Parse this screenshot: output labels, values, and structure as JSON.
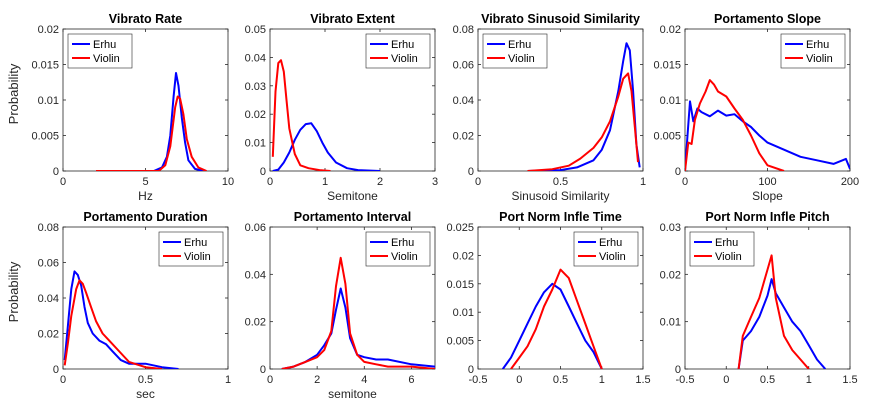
{
  "figure": {
    "y_label": "Probability"
  },
  "chart_data": [
    {
      "type": "line",
      "title": "Vibrato Rate",
      "xlabel": "Hz",
      "ylabel": "Probability",
      "xlim": [
        0,
        10
      ],
      "ylim": [
        0,
        0.02
      ],
      "xticks": [
        0,
        5,
        10
      ],
      "yticks": [
        0,
        0.005,
        0.01,
        0.015,
        0.02
      ],
      "xtick_labels": [
        "0",
        "5",
        "10"
      ],
      "ytick_labels": [
        "0",
        "0.005",
        "0.01",
        "0.015",
        "0.02"
      ],
      "legend": "top-left",
      "series": [
        {
          "name": "Erhu",
          "color": "#0000ff",
          "x": [
            2,
            5.5,
            6.0,
            6.3,
            6.5,
            6.7,
            6.85,
            7.0,
            7.2,
            7.4,
            7.6,
            8.0,
            8.5
          ],
          "y": [
            0,
            0,
            0.0005,
            0.002,
            0.005,
            0.0105,
            0.0138,
            0.012,
            0.0075,
            0.004,
            0.0015,
            0.0003,
            0
          ]
        },
        {
          "name": "Violin",
          "color": "#ff0000",
          "x": [
            2,
            5.8,
            6.2,
            6.5,
            6.8,
            6.95,
            7.1,
            7.3,
            7.5,
            7.8,
            8.2,
            8.7
          ],
          "y": [
            0,
            0,
            0.0008,
            0.0035,
            0.009,
            0.0105,
            0.0102,
            0.008,
            0.0045,
            0.002,
            0.0005,
            0
          ]
        }
      ]
    },
    {
      "type": "line",
      "title": "Vibrato Extent",
      "xlabel": "Semitone",
      "ylabel": "",
      "xlim": [
        0,
        3
      ],
      "ylim": [
        0,
        0.05
      ],
      "xticks": [
        0,
        1,
        2,
        3
      ],
      "yticks": [
        0,
        0.01,
        0.02,
        0.03,
        0.04,
        0.05
      ],
      "xtick_labels": [
        "0",
        "1",
        "2",
        "3"
      ],
      "ytick_labels": [
        "0",
        "0.01",
        "0.02",
        "0.03",
        "0.04",
        "0.05"
      ],
      "legend": "top-right",
      "series": [
        {
          "name": "Erhu",
          "color": "#0000ff",
          "x": [
            0.05,
            0.15,
            0.25,
            0.35,
            0.45,
            0.55,
            0.65,
            0.75,
            0.85,
            0.95,
            1.05,
            1.2,
            1.4,
            1.6,
            2.0
          ],
          "y": [
            0,
            0.0005,
            0.003,
            0.0065,
            0.011,
            0.0145,
            0.0165,
            0.0168,
            0.014,
            0.01,
            0.0065,
            0.003,
            0.001,
            0.0003,
            0
          ]
        },
        {
          "name": "Violin",
          "color": "#ff0000",
          "x": [
            0.05,
            0.1,
            0.15,
            0.2,
            0.25,
            0.3,
            0.35,
            0.45,
            0.55,
            0.7,
            0.9,
            1.1
          ],
          "y": [
            0.005,
            0.028,
            0.038,
            0.039,
            0.035,
            0.025,
            0.015,
            0.006,
            0.002,
            0.001,
            0.0003,
            0
          ]
        }
      ]
    },
    {
      "type": "line",
      "title": "Vibrato Sinusoid Similarity",
      "xlabel": "Sinusoid Similarity",
      "ylabel": "",
      "xlim": [
        0,
        1
      ],
      "ylim": [
        0,
        0.08
      ],
      "xticks": [
        0,
        0.5,
        1
      ],
      "yticks": [
        0,
        0.02,
        0.04,
        0.06,
        0.08
      ],
      "xtick_labels": [
        "0",
        "0.5",
        "1"
      ],
      "ytick_labels": [
        "0",
        "0.02",
        "0.04",
        "0.06",
        "0.08"
      ],
      "legend": "top-left",
      "series": [
        {
          "name": "Erhu",
          "color": "#0000ff",
          "x": [
            0.3,
            0.5,
            0.6,
            0.7,
            0.75,
            0.8,
            0.85,
            0.88,
            0.9,
            0.92,
            0.94,
            0.96,
            0.98
          ],
          "y": [
            0,
            0.0005,
            0.002,
            0.006,
            0.012,
            0.023,
            0.045,
            0.062,
            0.072,
            0.068,
            0.045,
            0.015,
            0.002
          ]
        },
        {
          "name": "Violin",
          "color": "#ff0000",
          "x": [
            0.3,
            0.45,
            0.55,
            0.62,
            0.7,
            0.75,
            0.8,
            0.85,
            0.88,
            0.91,
            0.93,
            0.95,
            0.97
          ],
          "y": [
            0,
            0.001,
            0.003,
            0.007,
            0.013,
            0.019,
            0.028,
            0.042,
            0.052,
            0.055,
            0.045,
            0.025,
            0.005
          ]
        }
      ]
    },
    {
      "type": "line",
      "title": "Portamento Slope",
      "xlabel": "Slope",
      "ylabel": "",
      "xlim": [
        0,
        200
      ],
      "ylim": [
        0,
        0.02
      ],
      "xticks": [
        0,
        100,
        200
      ],
      "yticks": [
        0,
        0.005,
        0.01,
        0.015,
        0.02
      ],
      "xtick_labels": [
        "0",
        "100",
        "200"
      ],
      "ytick_labels": [
        "0",
        "0.005",
        "0.01",
        "0.015",
        "0.02"
      ],
      "legend": "top-right",
      "series": [
        {
          "name": "Erhu",
          "color": "#0000ff",
          "x": [
            0,
            3,
            6,
            10,
            15,
            20,
            30,
            40,
            50,
            60,
            70,
            80,
            90,
            100,
            120,
            140,
            160,
            180,
            195,
            200
          ],
          "y": [
            0,
            0.005,
            0.0098,
            0.007,
            0.0088,
            0.0083,
            0.0077,
            0.0085,
            0.0078,
            0.008,
            0.007,
            0.0062,
            0.005,
            0.004,
            0.003,
            0.002,
            0.0015,
            0.001,
            0.0017,
            0.0003
          ]
        },
        {
          "name": "Violin",
          "color": "#ff0000",
          "x": [
            0,
            4,
            8,
            12,
            18,
            25,
            30,
            35,
            40,
            50,
            60,
            70,
            80,
            90,
            100,
            120
          ],
          "y": [
            0,
            0.004,
            0.0038,
            0.0072,
            0.0095,
            0.0112,
            0.0128,
            0.0122,
            0.0112,
            0.0105,
            0.0088,
            0.0072,
            0.005,
            0.0025,
            0.0008,
            0
          ]
        }
      ]
    },
    {
      "type": "line",
      "title": "Portamento Duration",
      "xlabel": "sec",
      "ylabel": "Probability",
      "xlim": [
        0,
        1
      ],
      "ylim": [
        0,
        0.08
      ],
      "xticks": [
        0,
        0.5,
        1
      ],
      "yticks": [
        0,
        0.02,
        0.04,
        0.06,
        0.08
      ],
      "xtick_labels": [
        "0",
        "0.5",
        "1"
      ],
      "ytick_labels": [
        "0",
        "0.02",
        "0.04",
        "0.06",
        "0.08"
      ],
      "legend": "top-right",
      "series": [
        {
          "name": "Erhu",
          "color": "#0000ff",
          "x": [
            0.01,
            0.03,
            0.05,
            0.07,
            0.09,
            0.11,
            0.13,
            0.15,
            0.18,
            0.22,
            0.26,
            0.3,
            0.35,
            0.4,
            0.5,
            0.6,
            0.7
          ],
          "y": [
            0.005,
            0.025,
            0.045,
            0.055,
            0.053,
            0.047,
            0.035,
            0.026,
            0.02,
            0.016,
            0.014,
            0.01,
            0.005,
            0.003,
            0.003,
            0.001,
            0
          ]
        },
        {
          "name": "Violin",
          "color": "#ff0000",
          "x": [
            0.01,
            0.03,
            0.05,
            0.08,
            0.1,
            0.12,
            0.14,
            0.17,
            0.2,
            0.24,
            0.28,
            0.33,
            0.4,
            0.5,
            0.6
          ],
          "y": [
            0.002,
            0.015,
            0.03,
            0.045,
            0.05,
            0.048,
            0.043,
            0.035,
            0.027,
            0.02,
            0.016,
            0.011,
            0.004,
            0.001,
            0
          ]
        }
      ]
    },
    {
      "type": "line",
      "title": "Portamento Interval",
      "xlabel": "semitone",
      "ylabel": "",
      "xlim": [
        0,
        7
      ],
      "ylim": [
        0,
        0.06
      ],
      "xticks": [
        0,
        2,
        4,
        6
      ],
      "yticks": [
        0,
        0.02,
        0.04,
        0.06
      ],
      "xtick_labels": [
        "0",
        "2",
        "4",
        "6"
      ],
      "ytick_labels": [
        "0",
        "0.02",
        "0.04",
        "0.06"
      ],
      "legend": "top-right",
      "series": [
        {
          "name": "Erhu",
          "color": "#0000ff",
          "x": [
            0.5,
            1,
            1.5,
            2,
            2.3,
            2.6,
            2.8,
            3.0,
            3.2,
            3.4,
            3.7,
            4.0,
            4.5,
            5,
            6,
            7
          ],
          "y": [
            0,
            0.001,
            0.003,
            0.006,
            0.01,
            0.015,
            0.025,
            0.034,
            0.026,
            0.013,
            0.006,
            0.005,
            0.004,
            0.004,
            0.002,
            0.001
          ]
        },
        {
          "name": "Violin",
          "color": "#ff0000",
          "x": [
            0.5,
            1,
            1.5,
            2,
            2.3,
            2.6,
            2.8,
            3.0,
            3.2,
            3.4,
            3.7,
            4.0,
            4.5,
            5,
            6,
            7
          ],
          "y": [
            0,
            0.001,
            0.003,
            0.005,
            0.008,
            0.016,
            0.035,
            0.047,
            0.036,
            0.015,
            0.006,
            0.003,
            0.002,
            0.001,
            0.001,
            0
          ]
        }
      ]
    },
    {
      "type": "line",
      "title": "Port Norm Infle Time",
      "xlabel": "",
      "ylabel": "",
      "xlim": [
        -0.5,
        1.5
      ],
      "ylim": [
        0,
        0.025
      ],
      "xticks": [
        -0.5,
        0,
        0.5,
        1,
        1.5
      ],
      "yticks": [
        0,
        0.005,
        0.01,
        0.015,
        0.02,
        0.025
      ],
      "xtick_labels": [
        "-0.5",
        "0",
        "0.5",
        "1",
        "1.5"
      ],
      "ytick_labels": [
        "0",
        "0.005",
        "0.01",
        "0.015",
        "0.02",
        "0.025"
      ],
      "legend": "top-right",
      "series": [
        {
          "name": "Erhu",
          "color": "#0000ff",
          "x": [
            -0.2,
            -0.1,
            0,
            0.1,
            0.2,
            0.3,
            0.4,
            0.5,
            0.6,
            0.7,
            0.8,
            0.9,
            1.0
          ],
          "y": [
            0,
            0.002,
            0.005,
            0.008,
            0.011,
            0.0135,
            0.015,
            0.014,
            0.011,
            0.008,
            0.005,
            0.003,
            0
          ]
        },
        {
          "name": "Violin",
          "color": "#ff0000",
          "x": [
            -0.1,
            0,
            0.1,
            0.2,
            0.3,
            0.4,
            0.5,
            0.6,
            0.7,
            0.8,
            0.9,
            1.0
          ],
          "y": [
            0,
            0.002,
            0.004,
            0.007,
            0.011,
            0.014,
            0.0175,
            0.016,
            0.012,
            0.008,
            0.004,
            0
          ]
        }
      ]
    },
    {
      "type": "line",
      "title": "Port Norm Infle Pitch",
      "xlabel": "",
      "ylabel": "",
      "xlim": [
        -0.5,
        1.5
      ],
      "ylim": [
        0,
        0.03
      ],
      "xticks": [
        -0.5,
        0,
        0.5,
        1,
        1.5
      ],
      "yticks": [
        0,
        0.01,
        0.02,
        0.03
      ],
      "xtick_labels": [
        "-0.5",
        "0",
        "0.5",
        "1",
        "1.5"
      ],
      "ytick_labels": [
        "0",
        "0.01",
        "0.02",
        "0.03"
      ],
      "legend": "top-left",
      "series": [
        {
          "name": "Erhu",
          "color": "#0000ff",
          "x": [
            0.15,
            0.2,
            0.3,
            0.4,
            0.5,
            0.55,
            0.6,
            0.7,
            0.8,
            0.9,
            1.0,
            1.1,
            1.2
          ],
          "y": [
            0,
            0.006,
            0.008,
            0.011,
            0.0155,
            0.019,
            0.016,
            0.013,
            0.01,
            0.008,
            0.005,
            0.002,
            0
          ]
        },
        {
          "name": "Violin",
          "color": "#ff0000",
          "x": [
            0.15,
            0.2,
            0.3,
            0.4,
            0.5,
            0.55,
            0.6,
            0.7,
            0.8,
            0.9,
            1.0
          ],
          "y": [
            0,
            0.007,
            0.011,
            0.015,
            0.021,
            0.024,
            0.015,
            0.007,
            0.004,
            0.002,
            0
          ]
        }
      ]
    }
  ]
}
